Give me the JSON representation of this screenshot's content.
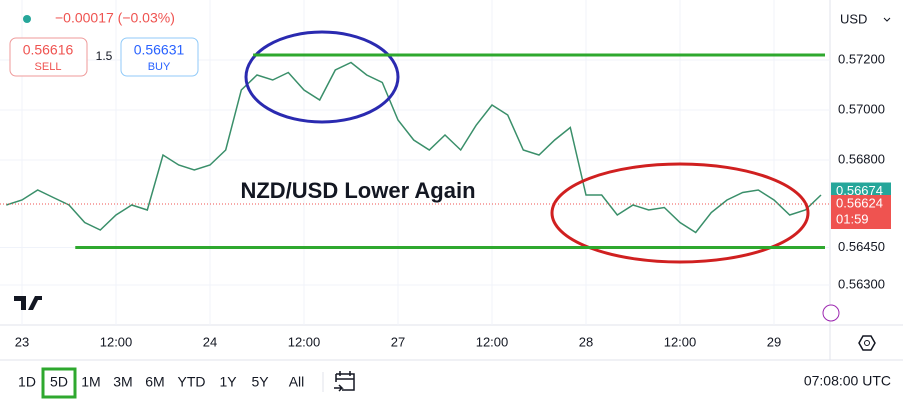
{
  "header": {
    "change": "−0.00017 (−0.03%)",
    "sell": {
      "price": "0.56616",
      "label": "SELL"
    },
    "spread": "1.5",
    "buy": {
      "price": "0.56631",
      "label": "BUY"
    },
    "currency": "USD"
  },
  "chart_data": {
    "type": "line",
    "annotation": "NZD/USD Lower Again",
    "color": "#3a8f6a",
    "x": [
      -2,
      0,
      2,
      4,
      6,
      8,
      10,
      12,
      14,
      16,
      18,
      20,
      22,
      24,
      26,
      28,
      30,
      32,
      34,
      36,
      38,
      40,
      42,
      44,
      46,
      48,
      50,
      52,
      54,
      56,
      58,
      60,
      62,
      64,
      66,
      68,
      70,
      72,
      74,
      76,
      78,
      80,
      82,
      84,
      86,
      88,
      90,
      92,
      94,
      96,
      98,
      100,
      102
    ],
    "values": [
      0.5662,
      0.5664,
      0.5668,
      0.5665,
      0.5662,
      0.5655,
      0.5652,
      0.5658,
      0.5662,
      0.566,
      0.5682,
      0.5678,
      0.5676,
      0.5678,
      0.5684,
      0.5708,
      0.5714,
      0.5712,
      0.5715,
      0.5708,
      0.5704,
      0.5716,
      0.5719,
      0.5714,
      0.5711,
      0.5696,
      0.5688,
      0.5684,
      0.569,
      0.5684,
      0.5694,
      0.5702,
      0.5698,
      0.5684,
      0.5682,
      0.5688,
      0.5693,
      0.5666,
      0.5666,
      0.5658,
      0.5662,
      0.566,
      0.5661,
      0.5655,
      0.5651,
      0.5659,
      0.5664,
      0.5667,
      0.5668,
      0.5664,
      0.5658,
      0.566,
      0.5666
    ],
    "xlim": [
      -2.81,
      103.15
    ],
    "xticks": [
      {
        "value": 0,
        "label": "23"
      },
      {
        "value": 12,
        "label": "12:00"
      },
      {
        "value": 24,
        "label": "24"
      },
      {
        "value": 36,
        "label": "12:00"
      },
      {
        "value": 48,
        "label": "27"
      },
      {
        "value": 60,
        "label": "12:00"
      },
      {
        "value": 72,
        "label": "28"
      },
      {
        "value": 84,
        "label": "12:00"
      },
      {
        "value": 96,
        "label": "29"
      }
    ],
    "ylim": [
      0.5614,
      0.5744
    ],
    "yticks": [
      {
        "value": 0.572,
        "label": "0.57200"
      },
      {
        "value": 0.57,
        "label": "0.57000"
      },
      {
        "value": 0.568,
        "label": "0.56800"
      },
      {
        "value": 0.5645,
        "label": "0.56450"
      },
      {
        "value": 0.563,
        "label": "0.56300"
      }
    ],
    "levels": [
      {
        "value": 0.5722,
        "from": 29.5,
        "color": "#2ea82e"
      },
      {
        "value": 0.5645,
        "from": 6.8,
        "color": "#2ea82e"
      }
    ],
    "price_badges": [
      {
        "value": 0.56674,
        "label": "0.56674",
        "color": "#26a69a"
      },
      {
        "value": 0.56624,
        "label": "0.56624",
        "color": "#ef5350"
      }
    ],
    "countdown": "01:59"
  },
  "toolbar": {
    "ranges": [
      "1D",
      "5D",
      "1M",
      "3M",
      "6M",
      "YTD",
      "1Y",
      "5Y",
      "All"
    ],
    "selected": 1,
    "time": "07:08:00 UTC"
  }
}
